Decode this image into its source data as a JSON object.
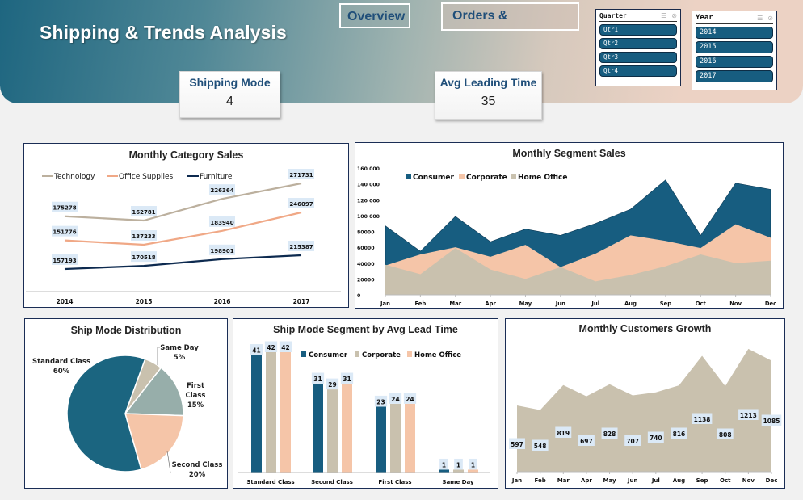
{
  "header": {
    "title": "Shipping & Trends Analysis",
    "nav": [
      {
        "label": "Overview"
      },
      {
        "label": "Orders &"
      }
    ]
  },
  "kpis": {
    "shipping_mode": {
      "label": "Shipping Mode",
      "value": "4"
    },
    "avg_leading_time": {
      "label": "Avg Leading Time",
      "value": "35"
    }
  },
  "slicers": {
    "quarter": {
      "title": "Quarter",
      "items": [
        "Qtr1",
        "Qtr2",
        "Qtr3",
        "Qtr4"
      ]
    },
    "year": {
      "title": "Year",
      "items": [
        "2014",
        "2015",
        "2016",
        "2017"
      ]
    }
  },
  "colors": {
    "navy": "#0d2a4f",
    "teal": "#1b6580",
    "tan": "#c8bfad",
    "peach": "#f4c4a8",
    "sage": "#97aeaa",
    "border": "#1a2d55"
  },
  "chart_data": [
    {
      "id": "category",
      "type": "line",
      "title": "Monthly Category Sales",
      "categories": [
        "2014",
        "2015",
        "2016",
        "2017"
      ],
      "series": [
        {
          "name": "Technology",
          "color": "#bcb09e",
          "values": [
            175278,
            162781,
            226364,
            271731
          ]
        },
        {
          "name": "Office Supplies",
          "color": "#f0a886",
          "values": [
            151776,
            137233,
            183940,
            246097
          ]
        },
        {
          "name": "Furniture",
          "color": "#0d2a4f",
          "values": [
            157193,
            170518,
            198901,
            215387
          ]
        }
      ],
      "legend": "top-left",
      "data_labels": true
    },
    {
      "id": "segment",
      "type": "area",
      "title": "Monthly Segment Sales",
      "categories": [
        "Jan",
        "Feb",
        "Mar",
        "Apr",
        "May",
        "Jun",
        "Jul",
        "Aug",
        "Sep",
        "Oct",
        "Nov",
        "Dec"
      ],
      "yticks": [
        "0",
        "20000",
        "40000",
        "60000",
        "80000",
        "100 000",
        "120 000",
        "140 000",
        "160 000"
      ],
      "ylim": [
        0,
        160000
      ],
      "series": [
        {
          "name": "Consumer",
          "color": "#175d80",
          "values": [
            87000,
            55000,
            99000,
            67000,
            83000,
            75000,
            90000,
            108000,
            145000,
            75000,
            141000,
            133000
          ]
        },
        {
          "name": "Corporate",
          "color": "#f5c5a8",
          "values": [
            37000,
            51000,
            60000,
            48000,
            63000,
            35000,
            52000,
            75000,
            68000,
            59000,
            89000,
            72000
          ]
        },
        {
          "name": "Home Office",
          "color": "#c9c1ae",
          "values": [
            38000,
            26000,
            59000,
            32000,
            20000,
            35000,
            17000,
            25000,
            36000,
            51000,
            40000,
            43000
          ]
        }
      ],
      "legend": "top-left"
    },
    {
      "id": "shipmode",
      "type": "pie",
      "title": "Ship Mode Distribution",
      "slices": [
        {
          "label": "Same Day",
          "pct_label": "5%",
          "value": 5,
          "color": "#c9c1ae"
        },
        {
          "label": "First Class",
          "label_lines": [
            "First",
            "Class"
          ],
          "pct_label": "15%",
          "value": 15,
          "color": "#97aeaa"
        },
        {
          "label": "Second Class",
          "pct_label": "20%",
          "value": 20,
          "color": "#f5c5a8"
        },
        {
          "label": "Standard Class",
          "pct_label": "60%",
          "value": 60,
          "color": "#1b6580"
        }
      ]
    },
    {
      "id": "leadtime",
      "type": "bar",
      "title": "Ship Mode Segment by Avg Lead Time",
      "categories": [
        "Standard Class",
        "Second Class",
        "First Class",
        "Same Day"
      ],
      "series": [
        {
          "name": "Consumer",
          "color": "#175d80",
          "values": [
            41,
            31,
            23,
            1
          ]
        },
        {
          "name": "Corporate",
          "color": "#c9c1ae",
          "values": [
            42,
            29,
            24,
            1
          ]
        },
        {
          "name": "Home Office",
          "color": "#f5c5a8",
          "values": [
            42,
            31,
            24,
            1
          ]
        }
      ],
      "ylim": [
        0,
        45
      ],
      "legend": "top-right"
    },
    {
      "id": "customers",
      "type": "area",
      "title": "Monthly Customers Growth",
      "categories": [
        "Jan",
        "Feb",
        "Mar",
        "Apr",
        "May",
        "Jun",
        "Jul",
        "Aug",
        "Sep",
        "Oct",
        "Nov",
        "Dec"
      ],
      "series": [
        {
          "name": "Customers",
          "color": "#c9c1ae",
          "values": [
            597,
            548,
            819,
            697,
            828,
            707,
            740,
            816,
            1138,
            808,
            1213,
            1085
          ]
        }
      ],
      "ylim": [
        0,
        1300
      ]
    }
  ]
}
